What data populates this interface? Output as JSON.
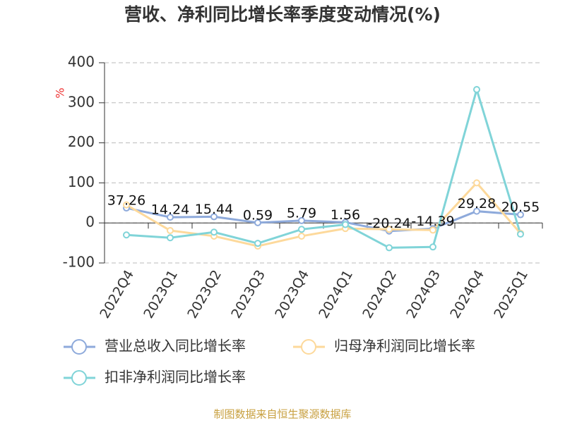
{
  "chart_data": {
    "type": "line",
    "title": "营收、净利同比增长率季度变动情况(%)",
    "y_label": "%",
    "categories": [
      "2022Q4",
      "2023Q1",
      "2023Q2",
      "2023Q3",
      "2023Q4",
      "2024Q1",
      "2024Q2",
      "2024Q3",
      "2024Q4",
      "2025Q1"
    ],
    "series": [
      {
        "name": "营业总收入同比增长率",
        "color": "#8eaadb",
        "values": [
          37.26,
          14.24,
          15.44,
          0.59,
          5.79,
          1.56,
          -20.24,
          -14.39,
          29.28,
          20.55
        ],
        "show_labels": true
      },
      {
        "name": "归母净利润同比增长率",
        "color": "#fdd99b",
        "values": [
          45,
          -19,
          -33,
          -58,
          -33,
          -14,
          -16,
          -18,
          100,
          -26
        ]
      },
      {
        "name": "扣非净利润同比增长率",
        "color": "#80d4d8",
        "values": [
          -30,
          -37,
          -23,
          -51,
          -16,
          -4,
          -62,
          -60,
          333,
          -28
        ]
      }
    ],
    "ylim": [
      -100,
      400
    ],
    "yticks": [
      -100,
      0,
      100,
      200,
      300,
      400
    ],
    "grid": true,
    "source": "制图数据来自恒生聚源数据库"
  }
}
